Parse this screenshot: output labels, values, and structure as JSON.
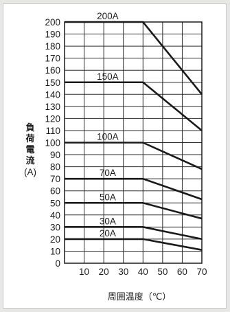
{
  "chart_data": {
    "type": "line",
    "title": "",
    "xlabel": "周囲温度（℃）",
    "ylabel": "負荷電流",
    "ylabel_unit": "(A)",
    "xlim": [
      0,
      70
    ],
    "ylim": [
      0,
      200
    ],
    "x_ticks": [
      10,
      20,
      30,
      40,
      50,
      60,
      70
    ],
    "y_ticks": [
      0,
      10,
      20,
      30,
      40,
      50,
      60,
      70,
      80,
      90,
      100,
      110,
      120,
      130,
      140,
      150,
      160,
      170,
      180,
      190,
      200
    ],
    "grid": true,
    "series": [
      {
        "name": "200A",
        "x": [
          0,
          40,
          70
        ],
        "y": [
          200,
          200,
          140
        ]
      },
      {
        "name": "150A",
        "x": [
          0,
          40,
          70
        ],
        "y": [
          150,
          150,
          110
        ]
      },
      {
        "name": "100A",
        "x": [
          0,
          40,
          70
        ],
        "y": [
          100,
          100,
          78
        ]
      },
      {
        "name": "70A",
        "x": [
          0,
          40,
          70
        ],
        "y": [
          70,
          70,
          53
        ]
      },
      {
        "name": "50A",
        "x": [
          0,
          40,
          70
        ],
        "y": [
          50,
          50,
          37
        ]
      },
      {
        "name": "30A",
        "x": [
          0,
          40,
          70
        ],
        "y": [
          30,
          30,
          20
        ]
      },
      {
        "name": "20A",
        "x": [
          0,
          40,
          70
        ],
        "y": [
          20,
          20,
          11
        ]
      }
    ],
    "colors": {
      "line": "#1a1a1a",
      "grid": "#2a2a2a",
      "background": "#ffffff"
    }
  }
}
